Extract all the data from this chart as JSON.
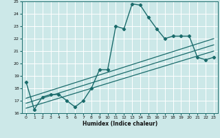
{
  "xlabel": "Humidex (Indice chaleur)",
  "bg_color": "#cce8e8",
  "grid_color": "#ffffff",
  "line_color": "#1a6b6b",
  "xlim": [
    -0.5,
    23.5
  ],
  "ylim": [
    16,
    25
  ],
  "xticks": [
    0,
    1,
    2,
    3,
    4,
    5,
    6,
    7,
    8,
    9,
    10,
    11,
    12,
    13,
    14,
    15,
    16,
    17,
    18,
    19,
    20,
    21,
    22,
    23
  ],
  "yticks": [
    16,
    17,
    18,
    19,
    20,
    21,
    22,
    23,
    24,
    25
  ],
  "main_x": [
    0,
    1,
    2,
    3,
    4,
    5,
    6,
    7,
    8,
    9,
    10,
    11,
    12,
    13,
    14,
    15,
    16,
    17,
    18,
    19,
    20,
    21,
    22,
    23
  ],
  "main_y": [
    18.5,
    16.3,
    17.3,
    17.5,
    17.5,
    17.0,
    16.5,
    17.0,
    18.0,
    19.5,
    19.5,
    23.0,
    22.8,
    24.8,
    24.7,
    23.7,
    22.8,
    22.0,
    22.2,
    22.2,
    22.2,
    20.5,
    20.3,
    20.5
  ],
  "line1_x": [
    0,
    23
  ],
  "line1_y": [
    17.2,
    22.0
  ],
  "line2_x": [
    0,
    23
  ],
  "line2_y": [
    16.8,
    21.5
  ],
  "line3_x": [
    0,
    23
  ],
  "line3_y": [
    16.4,
    21.0
  ]
}
